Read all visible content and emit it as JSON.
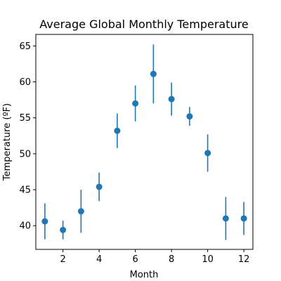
{
  "chart_data": {
    "type": "scatter",
    "title": "Average Global Monthly Temperature",
    "xlabel": "Month",
    "ylabel": "Temperature (ºF)",
    "xlim": [
      0.5,
      12.5
    ],
    "ylim": [
      36.7,
      66.6
    ],
    "xticks": [
      2,
      4,
      6,
      8,
      10,
      12
    ],
    "yticks": [
      40,
      45,
      50,
      55,
      60,
      65
    ],
    "grid": false,
    "color": "#1f77b4",
    "x": [
      1,
      2,
      3,
      4,
      5,
      6,
      7,
      8,
      9,
      10,
      11,
      12
    ],
    "y": [
      40.6,
      39.4,
      42.0,
      45.4,
      53.2,
      57.0,
      61.1,
      57.6,
      55.2,
      50.1,
      41.0,
      41.0
    ],
    "yerr": [
      2.5,
      1.3,
      3.0,
      2.0,
      2.4,
      2.5,
      4.1,
      2.3,
      1.3,
      2.6,
      3.0,
      2.3
    ]
  }
}
